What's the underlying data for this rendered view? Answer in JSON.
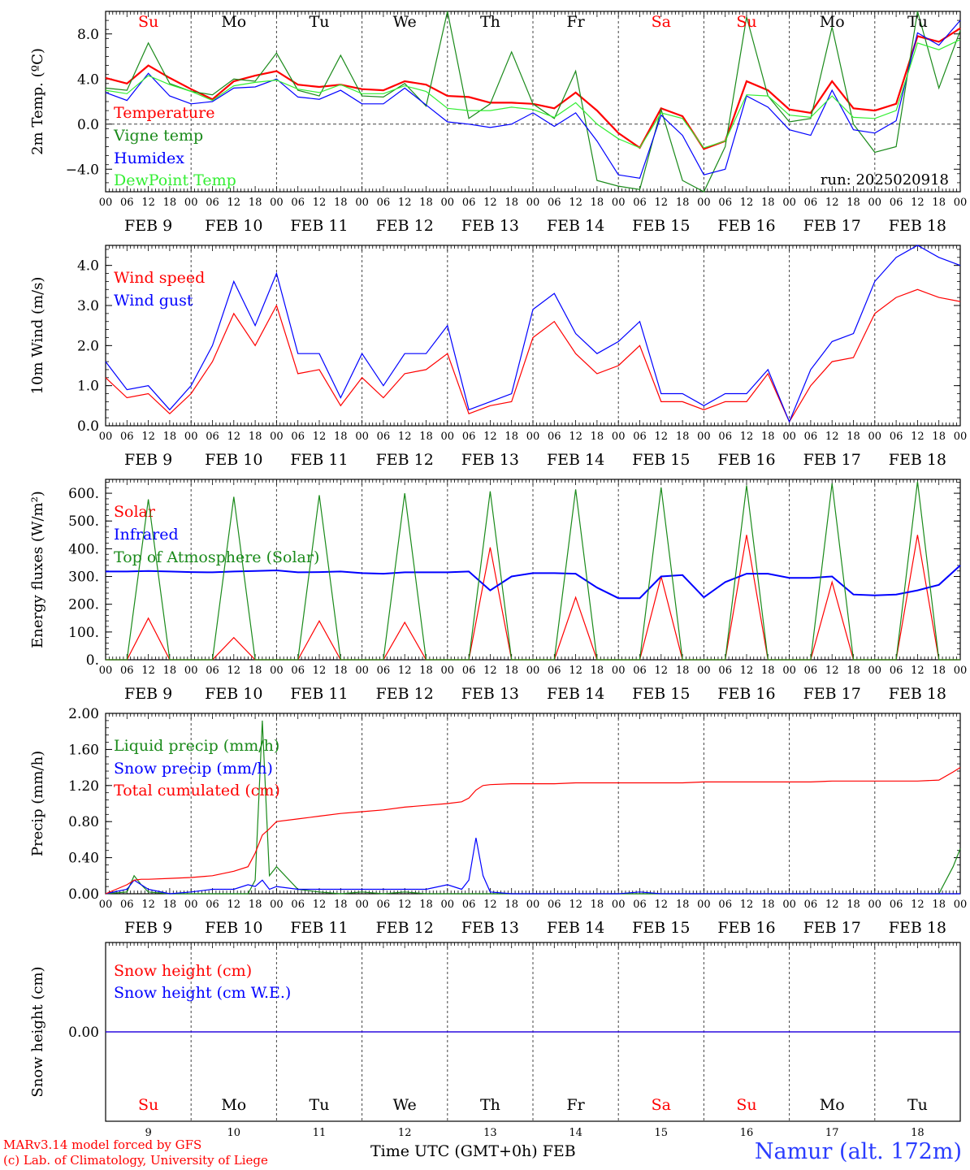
{
  "footer": {
    "credit_line1": "MARv3.14 model forced by GFS",
    "credit_line2": "(c) Lab. of Climatology, University of Liege",
    "x_axis_label": "Time UTC (GMT+0h) FEB",
    "station": "Namur (alt. 172m)"
  },
  "colors": {
    "red": "#ff0000",
    "green": "#1a8a1a",
    "blue": "#0000ff",
    "lightgreen": "#33ee33",
    "weekend": "#ff0000",
    "weekday": "#000000"
  },
  "days": [
    {
      "weekday": "Su",
      "date": "FEB  9",
      "num": "9",
      "weekend": true
    },
    {
      "weekday": "Mo",
      "date": "FEB 10",
      "num": "10",
      "weekend": false
    },
    {
      "weekday": "Tu",
      "date": "FEB 11",
      "num": "11",
      "weekend": false
    },
    {
      "weekday": "We",
      "date": "FEB 12",
      "num": "12",
      "weekend": false
    },
    {
      "weekday": "Th",
      "date": "FEB 13",
      "num": "13",
      "weekend": false
    },
    {
      "weekday": "Fr",
      "date": "FEB 14",
      "num": "14",
      "weekend": false
    },
    {
      "weekday": "Sa",
      "date": "FEB 15",
      "num": "15",
      "weekend": true
    },
    {
      "weekday": "Su",
      "date": "FEB 16",
      "num": "16",
      "weekend": true
    },
    {
      "weekday": "Mo",
      "date": "FEB 17",
      "num": "17",
      "weekend": false
    },
    {
      "weekday": "Tu",
      "date": "FEB 18",
      "num": "18",
      "weekend": false
    }
  ],
  "hour_labels": [
    "00",
    "06",
    "12",
    "18"
  ],
  "chart_data": [
    {
      "type": "line",
      "ylabel": "2m Temp. (ºC)",
      "ylim": [
        -6,
        10
      ],
      "yticks": [
        -4,
        0,
        4,
        8
      ],
      "ytick_labels": [
        "−4.0",
        "0.0",
        "4.0",
        "8.0"
      ],
      "zero_line": true,
      "annotation": "run: 2025020918",
      "x": [
        0,
        6,
        12,
        18,
        24,
        30,
        36,
        42,
        48,
        54,
        60,
        66,
        72,
        78,
        84,
        90,
        96,
        102,
        108,
        114,
        120,
        126,
        132,
        138,
        144,
        150,
        156,
        162,
        168,
        174,
        180,
        186,
        192,
        198,
        204,
        210,
        216,
        222,
        228,
        234,
        240
      ],
      "series": [
        {
          "name": "Temperature",
          "color": "red",
          "width": 2.2,
          "values": [
            4.1,
            3.6,
            5.2,
            4.1,
            3.1,
            2.2,
            3.8,
            4.3,
            4.7,
            3.5,
            3.3,
            3.5,
            3.1,
            3.0,
            3.8,
            3.5,
            2.5,
            2.4,
            1.9,
            1.9,
            1.8,
            1.4,
            2.8,
            1.2,
            -0.8,
            -2.1,
            1.4,
            0.7,
            -2.2,
            -1.5,
            3.8,
            3.0,
            1.3,
            1.0,
            3.8,
            1.4,
            1.2,
            1.8,
            7.8,
            7.3,
            8.5
          ]
        },
        {
          "name": "Vigne temp",
          "color": "green",
          "width": 1.2,
          "values": [
            3.2,
            3.0,
            7.2,
            3.6,
            2.9,
            2.6,
            4.0,
            3.8,
            6.3,
            3.0,
            2.5,
            6.1,
            2.5,
            2.4,
            3.6,
            1.6,
            10.0,
            0.5,
            1.8,
            6.4,
            1.8,
            0.5,
            4.7,
            -5.0,
            -5.5,
            -5.8,
            1.3,
            -5.0,
            -6.0,
            -2.0,
            9.5,
            2.5,
            0.2,
            0.5,
            8.6,
            0.0,
            -2.5,
            -2.0,
            10.0,
            3.2,
            8.3
          ]
        },
        {
          "name": "Humidex",
          "color": "blue",
          "width": 1.2,
          "values": [
            2.8,
            2.1,
            4.5,
            2.5,
            1.8,
            2.0,
            3.2,
            3.3,
            4.0,
            2.4,
            2.2,
            3.0,
            1.8,
            1.8,
            3.2,
            1.7,
            0.2,
            0.0,
            -0.3,
            0.0,
            1.0,
            -0.2,
            1.0,
            -1.5,
            -4.5,
            -4.8,
            0.8,
            -1.0,
            -4.5,
            -4.0,
            2.5,
            1.5,
            -0.5,
            -1.0,
            3.0,
            -0.5,
            -0.8,
            0.3,
            8.1,
            7.0,
            9.2
          ]
        },
        {
          "name": "DewPoint Temp",
          "color": "lightgreen",
          "width": 1.2,
          "values": [
            3.0,
            2.7,
            4.3,
            3.5,
            2.9,
            2.1,
            3.4,
            3.7,
            3.9,
            3.1,
            2.8,
            3.5,
            2.7,
            2.7,
            3.4,
            2.9,
            1.4,
            1.2,
            1.2,
            1.5,
            1.3,
            0.6,
            1.9,
            0.0,
            -1.3,
            -2.1,
            1.0,
            0.5,
            -2.1,
            -1.5,
            2.6,
            2.5,
            0.8,
            0.6,
            2.5,
            0.6,
            0.5,
            1.2,
            7.2,
            6.6,
            7.5
          ]
        }
      ]
    },
    {
      "type": "line",
      "ylabel": "10m Wind (m/s)",
      "ylim": [
        0,
        4.5
      ],
      "yticks": [
        0,
        1,
        2,
        3,
        4
      ],
      "ytick_labels": [
        "0.0",
        "1.0",
        "2.0",
        "3.0",
        "4.0"
      ],
      "x": [
        0,
        6,
        12,
        18,
        24,
        30,
        36,
        42,
        48,
        54,
        60,
        66,
        72,
        78,
        84,
        90,
        96,
        102,
        108,
        114,
        120,
        126,
        132,
        138,
        144,
        150,
        156,
        162,
        168,
        174,
        180,
        186,
        192,
        198,
        204,
        210,
        216,
        222,
        228,
        234,
        240
      ],
      "series": [
        {
          "name": "Wind speed",
          "color": "red",
          "width": 1.2,
          "values": [
            1.2,
            0.7,
            0.8,
            0.3,
            0.8,
            1.6,
            2.8,
            2.0,
            3.0,
            1.3,
            1.4,
            0.5,
            1.2,
            0.7,
            1.3,
            1.4,
            1.8,
            0.3,
            0.5,
            0.6,
            2.2,
            2.6,
            1.8,
            1.3,
            1.5,
            2.0,
            0.6,
            0.6,
            0.4,
            0.6,
            0.6,
            1.3,
            0.1,
            1.0,
            1.6,
            1.7,
            2.8,
            3.2,
            3.4,
            3.2,
            3.1
          ]
        },
        {
          "name": "Wind gust",
          "color": "blue",
          "width": 1.2,
          "values": [
            1.6,
            0.9,
            1.0,
            0.4,
            1.0,
            2.0,
            3.6,
            2.5,
            3.8,
            1.8,
            1.8,
            0.7,
            1.8,
            1.0,
            1.8,
            1.8,
            2.5,
            0.4,
            0.6,
            0.8,
            2.9,
            3.3,
            2.3,
            1.8,
            2.1,
            2.6,
            0.8,
            0.8,
            0.5,
            0.8,
            0.8,
            1.4,
            0.1,
            1.4,
            2.1,
            2.3,
            3.6,
            4.2,
            4.5,
            4.2,
            4.0
          ]
        }
      ]
    },
    {
      "type": "line",
      "ylabel": "Energy fluxes (W/m²)",
      "ylim": [
        0,
        650
      ],
      "yticks": [
        0,
        100,
        200,
        300,
        400,
        500,
        600
      ],
      "ytick_labels": [
        "0.",
        "100.",
        "200.",
        "300.",
        "400.",
        "500.",
        "600."
      ],
      "x": [
        0,
        6,
        12,
        18,
        24,
        30,
        36,
        42,
        48,
        54,
        60,
        66,
        72,
        78,
        84,
        90,
        96,
        102,
        108,
        114,
        120,
        126,
        132,
        138,
        144,
        150,
        156,
        162,
        168,
        174,
        180,
        186,
        192,
        198,
        204,
        210,
        216,
        222,
        228,
        234,
        240
      ],
      "series": [
        {
          "name": "Solar",
          "color": "red",
          "width": 1.2,
          "values": [
            0,
            0,
            150,
            0,
            0,
            0,
            80,
            0,
            0,
            0,
            140,
            0,
            0,
            0,
            135,
            0,
            0,
            0,
            405,
            0,
            0,
            0,
            225,
            0,
            0,
            0,
            300,
            0,
            0,
            0,
            450,
            0,
            0,
            0,
            280,
            0,
            0,
            0,
            450,
            0,
            0
          ]
        },
        {
          "name": "Infrared",
          "color": "blue",
          "width": 2.0,
          "values": [
            318,
            318,
            320,
            318,
            316,
            315,
            318,
            320,
            322,
            315,
            316,
            318,
            312,
            310,
            315,
            315,
            315,
            318,
            250,
            300,
            312,
            312,
            310,
            260,
            222,
            222,
            300,
            305,
            225,
            280,
            310,
            310,
            295,
            295,
            300,
            235,
            232,
            235,
            250,
            270,
            340
          ]
        },
        {
          "name": "Top of Atmosphere (Solar)",
          "color": "green",
          "width": 1.2,
          "values": [
            0,
            0,
            578,
            0,
            0,
            0,
            587,
            0,
            0,
            0,
            593,
            0,
            0,
            0,
            600,
            0,
            0,
            0,
            607,
            0,
            0,
            0,
            614,
            0,
            0,
            0,
            621,
            0,
            0,
            0,
            628,
            0,
            0,
            0,
            635,
            0,
            0,
            0,
            642,
            0,
            0
          ]
        }
      ]
    },
    {
      "type": "line",
      "ylabel": "Precip (mm/h)",
      "ylim": [
        0,
        2.0
      ],
      "yticks": [
        0,
        0.4,
        0.8,
        1.2,
        1.6,
        2.0
      ],
      "ytick_labels": [
        "0.00",
        "0.40",
        "0.80",
        "1.20",
        "1.60",
        "2.00"
      ],
      "x": [
        0,
        6,
        8,
        10,
        12,
        18,
        24,
        30,
        36,
        40,
        42,
        44,
        46,
        48,
        54,
        60,
        66,
        72,
        78,
        84,
        90,
        96,
        100,
        102,
        104,
        106,
        108,
        114,
        120,
        126,
        132,
        138,
        144,
        150,
        156,
        162,
        168,
        174,
        180,
        186,
        192,
        198,
        204,
        210,
        216,
        222,
        228,
        234,
        238,
        240
      ],
      "series": [
        {
          "name": "Liquid precip (mm/h)",
          "color": "green",
          "width": 1.2,
          "values": [
            0,
            0.02,
            0.2,
            0.1,
            0.02,
            0,
            0,
            0,
            0,
            0,
            0.15,
            1.92,
            0.2,
            0.3,
            0.05,
            0.02,
            0,
            0.02,
            0,
            0.02,
            0,
            0,
            0,
            0,
            0,
            0,
            0,
            0,
            0,
            0,
            0,
            0,
            0,
            0,
            0,
            0,
            0,
            0,
            0,
            0,
            0,
            0,
            0,
            0,
            0,
            0,
            0,
            0,
            0.3,
            0.5
          ]
        },
        {
          "name": "Snow precip (mm/h)",
          "color": "blue",
          "width": 1.2,
          "values": [
            0,
            0.05,
            0.15,
            0.1,
            0.05,
            0,
            0.02,
            0.05,
            0.05,
            0.1,
            0.08,
            0.15,
            0.05,
            0.08,
            0.05,
            0.05,
            0.05,
            0.05,
            0.05,
            0.05,
            0.05,
            0.1,
            0.05,
            0.15,
            0.62,
            0.2,
            0.02,
            0,
            0,
            0,
            0,
            0,
            0,
            0.02,
            0,
            0,
            0,
            0,
            0,
            0,
            0,
            0,
            0,
            0,
            0,
            0,
            0,
            0,
            0,
            0
          ]
        },
        {
          "name": "Total cumulated (cm)",
          "color": "red",
          "width": 1.2,
          "values": [
            0,
            0.1,
            0.15,
            0.16,
            0.16,
            0.17,
            0.18,
            0.2,
            0.25,
            0.3,
            0.45,
            0.65,
            0.72,
            0.8,
            0.83,
            0.86,
            0.89,
            0.91,
            0.93,
            0.96,
            0.98,
            1.0,
            1.02,
            1.06,
            1.15,
            1.2,
            1.21,
            1.22,
            1.22,
            1.22,
            1.23,
            1.23,
            1.23,
            1.23,
            1.23,
            1.23,
            1.24,
            1.24,
            1.24,
            1.24,
            1.24,
            1.24,
            1.25,
            1.25,
            1.25,
            1.25,
            1.25,
            1.26,
            1.35,
            1.4
          ]
        }
      ]
    },
    {
      "type": "line",
      "ylabel": "Snow height (cm)",
      "ylim": [
        -1,
        1
      ],
      "yticks": [
        0
      ],
      "ytick_labels": [
        "0.00"
      ],
      "x": [
        0,
        240
      ],
      "series": [
        {
          "name": "Snow height (cm)",
          "color": "red",
          "width": 1.2,
          "values": [
            0,
            0
          ]
        },
        {
          "name": "Snow height (cm W.E.)",
          "color": "blue",
          "width": 1.2,
          "values": [
            0,
            0
          ]
        }
      ]
    }
  ]
}
